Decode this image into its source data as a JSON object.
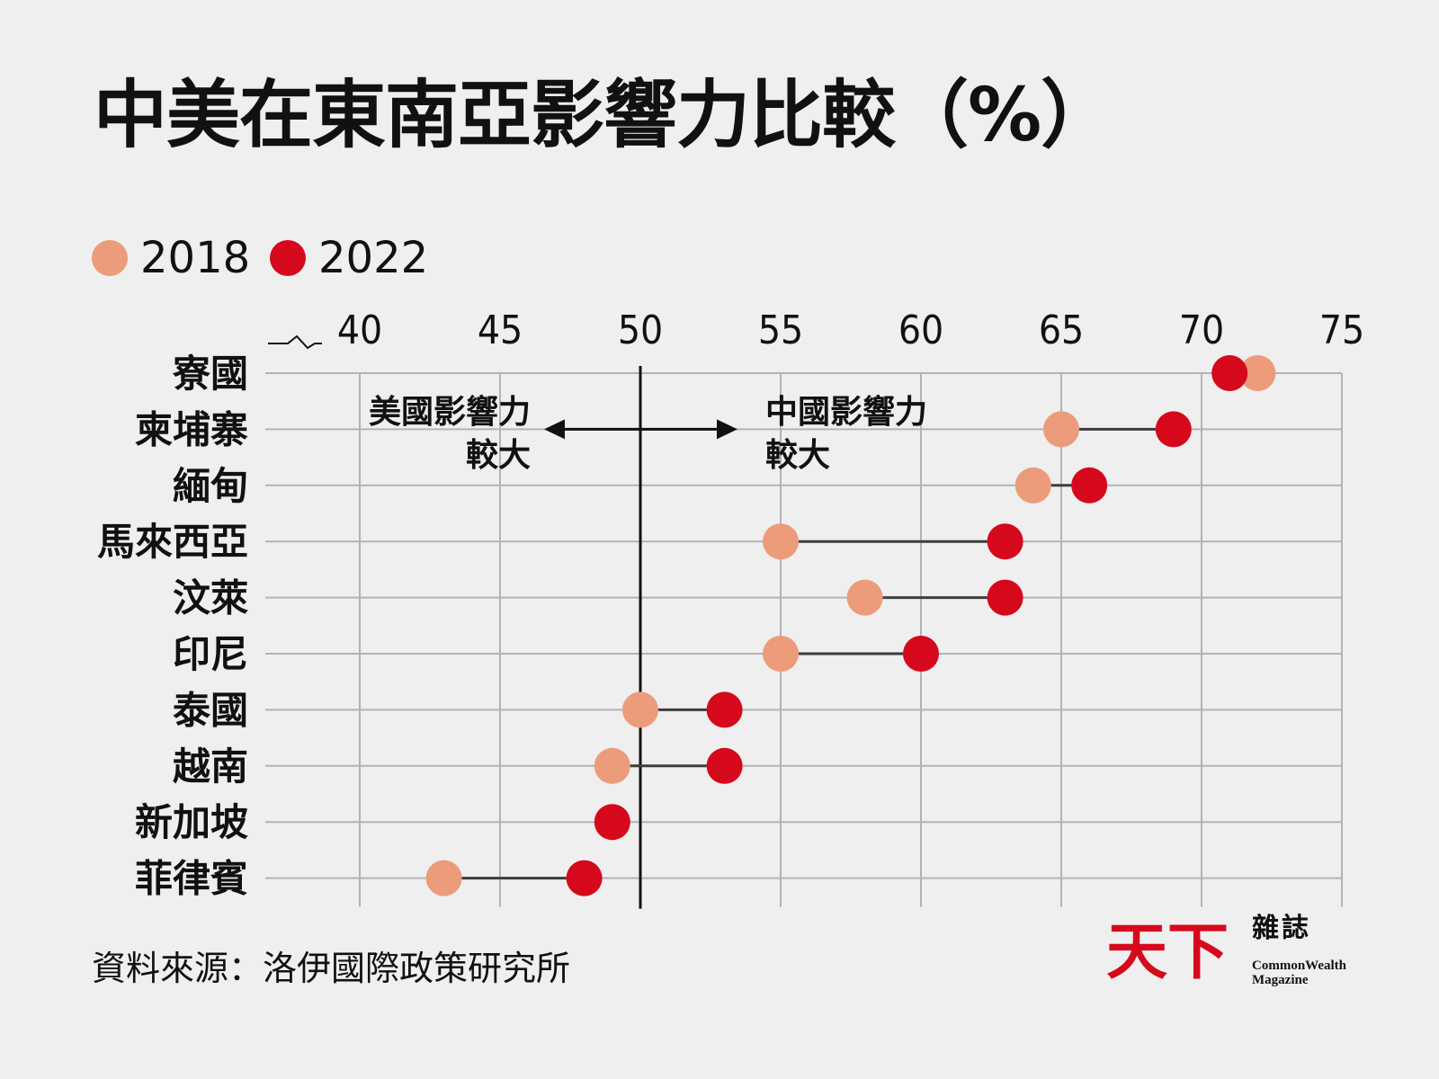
{
  "chart_data": {
    "type": "dumbbell",
    "title": "中美在東南亞影響力比較（%）",
    "series": [
      {
        "name": "2018",
        "color": "#ec9c7a",
        "values": [
          72,
          65,
          64,
          55,
          58,
          55,
          50,
          49,
          49,
          43
        ]
      },
      {
        "name": "2022",
        "color": "#d6091c",
        "values": [
          71,
          69,
          66,
          63,
          63,
          60,
          53,
          53,
          49,
          48
        ]
      }
    ],
    "categories": [
      "寮國",
      "柬埔寨",
      "緬甸",
      "馬來西亞",
      "汶萊",
      "印尼",
      "泰國",
      "越南",
      "新加坡",
      "菲律賓"
    ],
    "x_ticks": [
      40,
      45,
      50,
      55,
      60,
      65,
      70,
      75
    ],
    "xlim": [
      40,
      75
    ],
    "axis_break": true,
    "grid": true,
    "reference_line": 50,
    "annotations": {
      "left": [
        "美國影響力",
        "較大"
      ],
      "right": [
        "中國影響力",
        "較大"
      ]
    },
    "legend_placement": "top-left"
  },
  "source": "資料來源：洛伊國際政策研究所",
  "logo": {
    "mark_text": "天下",
    "name_zh": "雜誌",
    "name_en": [
      "CommonWealth",
      "Magazine"
    ]
  }
}
